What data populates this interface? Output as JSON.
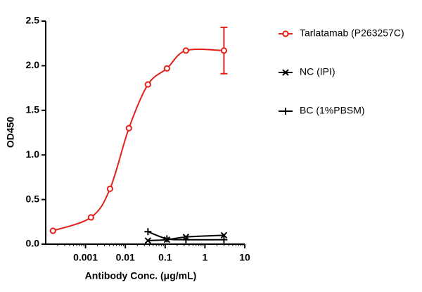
{
  "chart_data": {
    "type": "scatter",
    "x_label": "Antibody Conc. (μg/mL)",
    "y_label": "OD450",
    "xscale": "log",
    "xlim": [
      0.0001,
      10
    ],
    "xticks": [
      0.001,
      0.01,
      0.1,
      1,
      10
    ],
    "ylim": [
      0,
      2.5
    ],
    "yticks": [
      {
        "value": 0,
        "label": "0.0"
      },
      {
        "value": 0.5,
        "label": "0.5"
      },
      {
        "value": 1,
        "label": "1.0"
      },
      {
        "value": 1.5,
        "label": "1.5"
      },
      {
        "value": 2,
        "label": "2.0"
      },
      {
        "value": 2.5,
        "label": "2.5"
      }
    ],
    "legend": "right",
    "series": [
      {
        "name": "Tarlatamab (P263257C)",
        "color": "#e3211c",
        "marker": "circle",
        "x": [
          3,
          0.333,
          0.111,
          0.037,
          0.0123,
          0.00412,
          0.00137,
          0.000152
        ],
        "values": [
          2.17,
          2.17,
          1.97,
          1.79,
          1.3,
          0.62,
          0.3,
          0.15
        ],
        "errors": [
          0.26,
          null,
          null,
          null,
          null,
          null,
          null,
          null
        ]
      },
      {
        "name": "NC (IPI)",
        "color": "#000000",
        "marker": "x",
        "x": [
          3,
          0.333,
          0.111,
          0.037
        ],
        "values": [
          0.1,
          0.08,
          0.05,
          0.04
        ]
      },
      {
        "name": "BC (1%PBSM)",
        "color": "#000000",
        "marker": "plus",
        "x": [
          3,
          0.333,
          0.111,
          0.037
        ],
        "values": [
          0.05,
          0.05,
          0.06,
          0.14
        ]
      }
    ]
  }
}
